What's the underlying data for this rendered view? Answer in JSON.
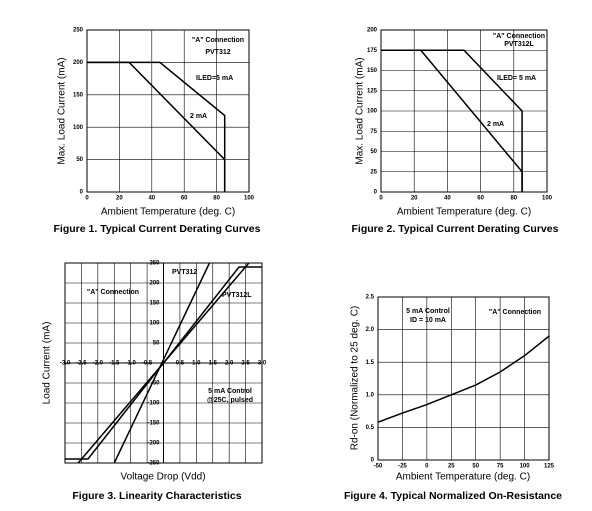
{
  "chart_data": [
    {
      "type": "line",
      "title": "Figure 1. Typical Current Derating Curves",
      "x_label": "Ambient Temperature (deg. C)",
      "y_label": "Max. Load Current (mA)",
      "annotations": [
        "\"A\" Connection",
        "PVT312"
      ],
      "color": "#000000",
      "grid": true,
      "xlim": [
        0,
        100
      ],
      "xticks": [
        0,
        20,
        40,
        60,
        80,
        100
      ],
      "ylim": [
        0,
        250
      ],
      "yticks": [
        0,
        50,
        100,
        150,
        200,
        250
      ],
      "series": [
        {
          "name": "ILED=5 mA",
          "x": [
            0,
            45,
            85,
            85
          ],
          "values": [
            200,
            200,
            118,
            0
          ]
        },
        {
          "name": "2 mA",
          "x": [
            0,
            26,
            85,
            85
          ],
          "values": [
            200,
            200,
            50,
            0
          ]
        }
      ]
    },
    {
      "type": "line",
      "title": "Figure 2. Typical Current Derating Curves",
      "x_label": "Ambient Temperature (deg. C)",
      "y_label": "Max. Load Current (mA)",
      "annotations": [
        "\"A\" Connection",
        "PVT312L"
      ],
      "color": "#000000",
      "grid": true,
      "xlim": [
        0,
        100
      ],
      "xticks": [
        0,
        20,
        40,
        60,
        80,
        100
      ],
      "ylim": [
        0,
        200
      ],
      "yticks": [
        0,
        25,
        50,
        75,
        100,
        125,
        150,
        175,
        200
      ],
      "series": [
        {
          "name": "ILED= 5 mA",
          "x": [
            0,
            50,
            85,
            85
          ],
          "values": [
            175,
            175,
            100,
            0
          ]
        },
        {
          "name": "2 mA",
          "x": [
            0,
            24,
            85,
            85
          ],
          "values": [
            175,
            175,
            25,
            0
          ]
        }
      ]
    },
    {
      "type": "line",
      "title": "Figure 3. Linearity Characteristics",
      "x_label": "Voltage Drop (Vdd)",
      "y_label": "Load Current (mA)",
      "annotations": [
        "\"A\" Connection",
        "5 mA Control",
        "@25C, pulsed"
      ],
      "color": "#000000",
      "grid": true,
      "xlim": [
        -3,
        3
      ],
      "xticks": [
        {
          "value": -3,
          "label": "-3.0"
        },
        -2.5,
        {
          "value": -2,
          "label": "-2.0"
        },
        -1.5,
        {
          "value": -1,
          "label": "-1.0"
        },
        -0.5,
        0.5,
        {
          "value": 1,
          "label": "1.0"
        },
        1.5,
        {
          "value": 2,
          "label": "2.0"
        },
        2.5,
        {
          "value": 3,
          "label": "3.0"
        }
      ],
      "ylim": [
        -250,
        250
      ],
      "yticks": [
        250,
        200,
        150,
        100,
        50,
        -50,
        -100,
        -150,
        -200,
        -250
      ],
      "series": [
        {
          "name": "PVT312",
          "x": [
            -1.5,
            1.4
          ],
          "values": [
            -250,
            250
          ]
        },
        {
          "name": "PVT312L",
          "x": [
            -2.6,
            2.6
          ],
          "values": [
            -250,
            250
          ]
        },
        {
          "x": [
            -3,
            -2.3,
            2.3,
            3
          ],
          "values": [
            -240,
            -240,
            240,
            240
          ]
        }
      ]
    },
    {
      "type": "line",
      "title": "Figure 4. Typical Normalized On-Resistance",
      "x_label": "Ambient Temperature (deg. C)",
      "y_label": "Rd-on (Normalized to 25 deg. C)",
      "annotations": [
        "5 mA Control",
        "ID = 10 mA",
        "\"A\" Connection"
      ],
      "color": "#000000",
      "grid": true,
      "xlim": [
        -50,
        125
      ],
      "xticks": [
        -50,
        -25,
        0,
        25,
        50,
        75,
        100,
        125
      ],
      "ylim": [
        0,
        2.5
      ],
      "yticks": [
        0,
        0.5,
        {
          "value": 1,
          "label": "1.0"
        },
        1.5,
        {
          "value": 2,
          "label": "2.0"
        },
        2.5
      ],
      "series": [
        {
          "x": [
            -50,
            -25,
            0,
            25,
            50,
            75,
            100,
            125
          ],
          "values": [
            0.58,
            0.72,
            0.85,
            1.0,
            1.15,
            1.35,
            1.6,
            1.9
          ]
        }
      ]
    }
  ]
}
